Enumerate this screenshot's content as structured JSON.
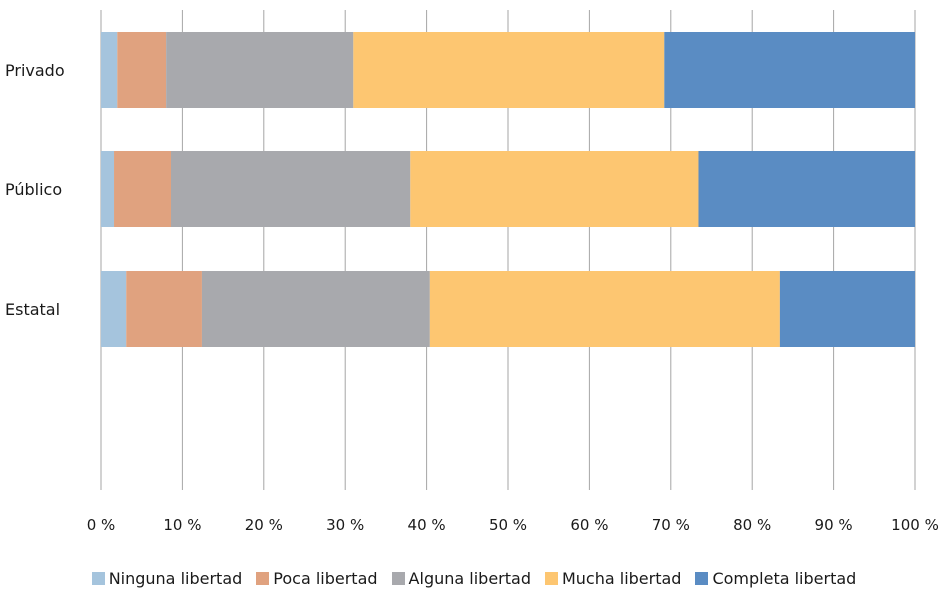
{
  "chart_data": {
    "type": "bar",
    "orientation": "horizontal",
    "stacked": true,
    "percent": true,
    "title": "",
    "xlabel": "",
    "ylabel": "",
    "xlim": [
      0,
      100
    ],
    "x_ticks": [
      "0 %",
      "10 %",
      "20 %",
      "30 %",
      "40 %",
      "50 %",
      "60 %",
      "70 %",
      "80 %",
      "90 %",
      "100 %"
    ],
    "grid": "vertical",
    "legend_position": "bottom",
    "categories": [
      "Privado",
      "Público",
      "Estatal"
    ],
    "series": [
      {
        "name": "Ninguna libertad",
        "color": "#a5c4dd",
        "values": [
          2.0,
          1.6,
          3.1
        ]
      },
      {
        "name": "Poca libertad",
        "color": "#e0a27f",
        "values": [
          6.0,
          7.0,
          9.3
        ]
      },
      {
        "name": "Alguna libertad",
        "color": "#a8a9ad",
        "values": [
          23.0,
          29.4,
          28.0
        ]
      },
      {
        "name": "Mucha libertad",
        "color": "#fdc671",
        "values": [
          38.2,
          35.4,
          43.0
        ]
      },
      {
        "name": "Completa libertad",
        "color": "#5a8cc3",
        "values": [
          30.8,
          26.6,
          16.6
        ]
      }
    ]
  }
}
